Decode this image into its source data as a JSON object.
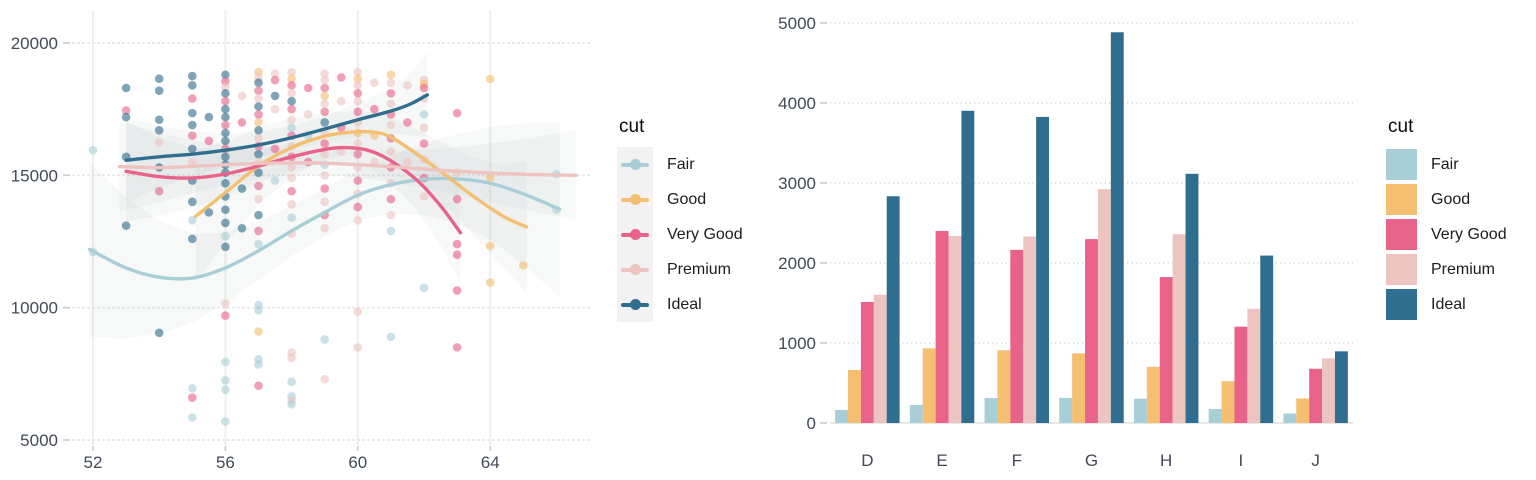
{
  "palette": {
    "Fair": "#a8ced8",
    "Good": "#f4bf70",
    "Very Good": "#e9628a",
    "Premium": "#edc4c0",
    "Ideal": "#2f6e8e"
  },
  "legend": {
    "title": "cut",
    "items": [
      "Fair",
      "Good",
      "Very Good",
      "Premium",
      "Ideal"
    ]
  },
  "chart_data": [
    {
      "type": "scatter",
      "title": "",
      "xlabel": "",
      "ylabel": "",
      "x_ticks": [
        52,
        56,
        60,
        64
      ],
      "y_ticks": [
        5000,
        10000,
        15000,
        20000
      ],
      "xlim": [
        51.4,
        67.0
      ],
      "ylim": [
        5000,
        20600
      ],
      "grid": "on",
      "legend_position": "right",
      "series_order": [
        "Fair",
        "Good",
        "Very Good",
        "Premium",
        "Ideal"
      ],
      "smooth_lines": {
        "Fair": [
          [
            51.9,
            12200
          ],
          [
            53,
            11500
          ],
          [
            54,
            11150
          ],
          [
            55,
            11120
          ],
          [
            56,
            11500
          ],
          [
            57,
            12150
          ],
          [
            58,
            12900
          ],
          [
            59,
            13600
          ],
          [
            60,
            14250
          ],
          [
            61,
            14650
          ],
          [
            62,
            14850
          ],
          [
            63,
            14870
          ],
          [
            64,
            14700
          ],
          [
            65,
            14300
          ],
          [
            66.1,
            13720
          ]
        ],
        "Good": [
          [
            55.1,
            13450
          ],
          [
            56,
            14350
          ],
          [
            57,
            15350
          ],
          [
            58,
            16050
          ],
          [
            59,
            16480
          ],
          [
            60,
            16650
          ],
          [
            60.8,
            16550
          ],
          [
            61.5,
            16050
          ],
          [
            62.5,
            15150
          ],
          [
            63.5,
            14200
          ],
          [
            64.4,
            13450
          ],
          [
            65.1,
            13050
          ]
        ],
        "Very Good": [
          [
            53,
            15150
          ],
          [
            54,
            14950
          ],
          [
            55,
            14900
          ],
          [
            56,
            15050
          ],
          [
            57,
            15350
          ],
          [
            58,
            15700
          ],
          [
            59,
            15980
          ],
          [
            59.6,
            16050
          ],
          [
            60.3,
            15950
          ],
          [
            61,
            15550
          ],
          [
            61.8,
            14800
          ],
          [
            62.5,
            13850
          ],
          [
            63.1,
            12830
          ]
        ],
        "Premium": [
          [
            52.8,
            15330
          ],
          [
            54,
            15290
          ],
          [
            55,
            15340
          ],
          [
            56,
            15400
          ],
          [
            57,
            15450
          ],
          [
            58,
            15470
          ],
          [
            59,
            15460
          ],
          [
            60,
            15400
          ],
          [
            61,
            15330
          ],
          [
            62.2,
            15220
          ],
          [
            63.5,
            15120
          ],
          [
            65,
            15040
          ],
          [
            66.6,
            15000
          ]
        ],
        "Ideal": [
          [
            53,
            15570
          ],
          [
            54,
            15700
          ],
          [
            55,
            15800
          ],
          [
            56,
            15950
          ],
          [
            57,
            16150
          ],
          [
            58,
            16420
          ],
          [
            59,
            16750
          ],
          [
            60,
            17100
          ],
          [
            61,
            17430
          ],
          [
            61.6,
            17700
          ],
          [
            62.1,
            18040
          ]
        ]
      },
      "points": [
        [
          52,
          15950,
          0
        ],
        [
          52,
          12100,
          0
        ],
        [
          53,
          18300,
          4
        ],
        [
          53,
          17450,
          2
        ],
        [
          53,
          17200,
          4
        ],
        [
          53,
          15700,
          4
        ],
        [
          53,
          13100,
          4
        ],
        [
          54,
          18650,
          4
        ],
        [
          54,
          18200,
          4
        ],
        [
          54,
          17100,
          4
        ],
        [
          54,
          16700,
          4
        ],
        [
          54,
          16250,
          3
        ],
        [
          54,
          15300,
          4
        ],
        [
          54,
          14400,
          2
        ],
        [
          54,
          9050,
          4
        ],
        [
          55,
          6950,
          0
        ],
        [
          55,
          6600,
          2
        ],
        [
          55,
          5850,
          0
        ],
        [
          55,
          18750,
          4
        ],
        [
          55,
          18400,
          4
        ],
        [
          55,
          17900,
          2
        ],
        [
          55,
          17350,
          4
        ],
        [
          55,
          16900,
          4
        ],
        [
          55,
          16500,
          2
        ],
        [
          55,
          16000,
          4
        ],
        [
          55,
          15500,
          3
        ],
        [
          55,
          14800,
          4
        ],
        [
          55,
          14000,
          4
        ],
        [
          55,
          13300,
          0
        ],
        [
          55,
          12600,
          4
        ],
        [
          55.5,
          17200,
          4
        ],
        [
          55.5,
          16300,
          2
        ],
        [
          55.5,
          13600,
          4
        ],
        [
          56,
          18800,
          4
        ],
        [
          56,
          18550,
          2
        ],
        [
          56,
          18350,
          3
        ],
        [
          56,
          18100,
          4
        ],
        [
          56,
          17800,
          2
        ],
        [
          56,
          17500,
          4
        ],
        [
          56,
          17200,
          4
        ],
        [
          56,
          16900,
          2
        ],
        [
          56,
          16600,
          4
        ],
        [
          56,
          16300,
          4
        ],
        [
          56,
          16000,
          2
        ],
        [
          56,
          15700,
          4
        ],
        [
          56,
          15400,
          4
        ],
        [
          56,
          15100,
          4
        ],
        [
          56,
          14700,
          4
        ],
        [
          56,
          14200,
          4
        ],
        [
          56,
          13700,
          4
        ],
        [
          56,
          13200,
          4
        ],
        [
          56,
          12700,
          0
        ],
        [
          56,
          12300,
          4
        ],
        [
          56,
          10150,
          3
        ],
        [
          56,
          9700,
          2
        ],
        [
          56,
          7950,
          0
        ],
        [
          56,
          7250,
          0
        ],
        [
          56,
          6900,
          0
        ],
        [
          56,
          5700,
          0
        ],
        [
          56.5,
          18000,
          3
        ],
        [
          56.5,
          17000,
          2
        ],
        [
          56.5,
          14500,
          4
        ],
        [
          56.5,
          13000,
          4
        ],
        [
          57,
          18900,
          1
        ],
        [
          57,
          18700,
          3
        ],
        [
          57,
          18500,
          4
        ],
        [
          57,
          18200,
          2
        ],
        [
          57,
          17900,
          3
        ],
        [
          57,
          17600,
          4
        ],
        [
          57,
          17300,
          2
        ],
        [
          57,
          17000,
          1
        ],
        [
          57,
          16700,
          4
        ],
        [
          57,
          16400,
          3
        ],
        [
          57,
          16100,
          2
        ],
        [
          57,
          15800,
          4
        ],
        [
          57,
          15500,
          3
        ],
        [
          57,
          15100,
          4
        ],
        [
          57,
          14600,
          2
        ],
        [
          57,
          14100,
          3
        ],
        [
          57,
          13500,
          4
        ],
        [
          57,
          12900,
          2
        ],
        [
          57,
          12400,
          0
        ],
        [
          57,
          10100,
          0
        ],
        [
          57,
          9900,
          0
        ],
        [
          57,
          9100,
          1
        ],
        [
          57,
          8050,
          0
        ],
        [
          57,
          7850,
          0
        ],
        [
          57,
          7050,
          2
        ],
        [
          57.5,
          18850,
          3
        ],
        [
          57.5,
          18600,
          2
        ],
        [
          57.5,
          18000,
          4
        ],
        [
          57.5,
          17500,
          3
        ],
        [
          57.5,
          16000,
          2
        ],
        [
          57.5,
          14800,
          0
        ],
        [
          58,
          18900,
          3
        ],
        [
          58,
          18650,
          1
        ],
        [
          58,
          18400,
          2
        ],
        [
          58,
          18100,
          3
        ],
        [
          58,
          17800,
          4
        ],
        [
          58,
          17500,
          2
        ],
        [
          58,
          17100,
          3
        ],
        [
          58,
          16800,
          0
        ],
        [
          58,
          16500,
          2
        ],
        [
          58,
          16100,
          3
        ],
        [
          58,
          15700,
          2
        ],
        [
          58,
          15300,
          3
        ],
        [
          58,
          14900,
          3
        ],
        [
          58,
          14400,
          2
        ],
        [
          58,
          13900,
          3
        ],
        [
          58,
          13400,
          0
        ],
        [
          58,
          12800,
          3
        ],
        [
          58,
          8300,
          3
        ],
        [
          58,
          8100,
          3
        ],
        [
          58,
          7200,
          0
        ],
        [
          58,
          6650,
          0
        ],
        [
          58,
          6500,
          3
        ],
        [
          58,
          6350,
          0
        ],
        [
          58.5,
          18300,
          2
        ],
        [
          58.5,
          17300,
          3
        ],
        [
          58.5,
          16500,
          0
        ],
        [
          58.5,
          15500,
          2
        ],
        [
          59,
          18850,
          3
        ],
        [
          59,
          18600,
          3
        ],
        [
          59,
          18300,
          2
        ],
        [
          59,
          18000,
          1
        ],
        [
          59,
          17700,
          3
        ],
        [
          59,
          17400,
          2
        ],
        [
          59,
          17000,
          4
        ],
        [
          59,
          16600,
          3
        ],
        [
          59,
          16200,
          2
        ],
        [
          59,
          15800,
          3
        ],
        [
          59,
          15400,
          0
        ],
        [
          59,
          15000,
          3
        ],
        [
          59,
          14500,
          2
        ],
        [
          59,
          14000,
          3
        ],
        [
          59,
          13500,
          2
        ],
        [
          59,
          13000,
          3
        ],
        [
          59,
          8800,
          0
        ],
        [
          59,
          7300,
          3
        ],
        [
          59.5,
          18700,
          2
        ],
        [
          59.5,
          17800,
          3
        ],
        [
          59.5,
          16800,
          2
        ],
        [
          59.5,
          15900,
          3
        ],
        [
          60,
          18900,
          3
        ],
        [
          60,
          18650,
          1
        ],
        [
          60,
          18400,
          3
        ],
        [
          60,
          18100,
          2
        ],
        [
          60,
          17800,
          3
        ],
        [
          60,
          17400,
          2
        ],
        [
          60,
          17000,
          3
        ],
        [
          60,
          16600,
          1
        ],
        [
          60,
          16200,
          3
        ],
        [
          60,
          15800,
          2
        ],
        [
          60,
          15300,
          3
        ],
        [
          60,
          14800,
          2
        ],
        [
          60,
          14300,
          3
        ],
        [
          60,
          13800,
          2
        ],
        [
          60,
          13300,
          3
        ],
        [
          60,
          9850,
          3
        ],
        [
          60,
          8500,
          3
        ],
        [
          60.5,
          18500,
          3
        ],
        [
          60.5,
          17500,
          2
        ],
        [
          60.5,
          16500,
          1
        ],
        [
          60.5,
          15500,
          3
        ],
        [
          61,
          18800,
          1
        ],
        [
          61,
          18500,
          3
        ],
        [
          61,
          18100,
          2
        ],
        [
          61,
          17700,
          3
        ],
        [
          61,
          17300,
          2
        ],
        [
          61,
          16900,
          3
        ],
        [
          61,
          16400,
          2
        ],
        [
          61,
          15900,
          3
        ],
        [
          61,
          15300,
          2
        ],
        [
          61,
          14700,
          3
        ],
        [
          61,
          14100,
          2
        ],
        [
          61,
          13500,
          3
        ],
        [
          61,
          12900,
          0
        ],
        [
          61,
          8900,
          0
        ],
        [
          61.5,
          18400,
          3
        ],
        [
          61.5,
          17000,
          2
        ],
        [
          61.5,
          15500,
          3
        ],
        [
          62,
          18600,
          3
        ],
        [
          62,
          18450,
          1
        ],
        [
          62,
          18300,
          2
        ],
        [
          62,
          17900,
          3
        ],
        [
          62,
          17300,
          0
        ],
        [
          62,
          16800,
          3
        ],
        [
          62,
          16200,
          2
        ],
        [
          62,
          15600,
          3
        ],
        [
          62,
          14900,
          2
        ],
        [
          62,
          14200,
          3
        ],
        [
          62,
          10750,
          0
        ],
        [
          63,
          17350,
          2
        ],
        [
          63,
          15100,
          3
        ],
        [
          63,
          14100,
          2
        ],
        [
          63,
          12400,
          2
        ],
        [
          63,
          12000,
          2
        ],
        [
          63,
          10650,
          2
        ],
        [
          63,
          8500,
          2
        ],
        [
          64,
          18640,
          1
        ],
        [
          64,
          14900,
          1
        ],
        [
          64,
          12330,
          1
        ],
        [
          64,
          10950,
          1
        ],
        [
          65,
          11600,
          1
        ],
        [
          66,
          15050,
          0
        ],
        [
          66,
          13700,
          0
        ]
      ]
    },
    {
      "type": "bar",
      "title": "",
      "xlabel": "",
      "ylabel": "",
      "categories": [
        "D",
        "E",
        "F",
        "G",
        "H",
        "I",
        "J"
      ],
      "series": [
        {
          "name": "Fair",
          "values": [
            163,
            224,
            312,
            314,
            303,
            175,
            119
          ]
        },
        {
          "name": "Good",
          "values": [
            662,
            933,
            909,
            871,
            702,
            522,
            307
          ]
        },
        {
          "name": "Very Good",
          "values": [
            1513,
            2400,
            2164,
            2299,
            1824,
            1204,
            678
          ]
        },
        {
          "name": "Premium",
          "values": [
            1603,
            2337,
            2331,
            2924,
            2360,
            1428,
            808
          ]
        },
        {
          "name": "Ideal",
          "values": [
            2834,
            3903,
            3826,
            4884,
            3115,
            2093,
            896
          ]
        }
      ],
      "y_ticks": [
        0,
        1000,
        2000,
        3000,
        4000,
        5000
      ],
      "ylim": [
        0,
        5000
      ],
      "grid": "horizontal-dotted",
      "legend_position": "right"
    }
  ]
}
